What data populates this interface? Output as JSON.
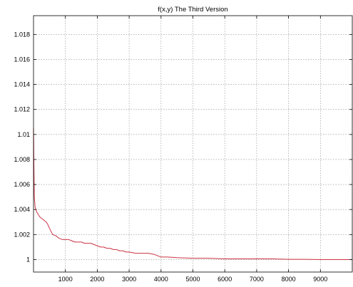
{
  "chart_data": {
    "type": "line",
    "title": "f(x,y) The Third Version",
    "xlabel": "",
    "ylabel": "",
    "xlim": [
      0,
      10000
    ],
    "ylim": [
      0.999,
      1.0195
    ],
    "xticks": [
      1000,
      2000,
      3000,
      4000,
      5000,
      6000,
      7000,
      8000,
      9000
    ],
    "yticks": [
      1,
      1.002,
      1.004,
      1.006,
      1.008,
      1.01,
      1.012,
      1.014,
      1.016,
      1.018
    ],
    "grid": true,
    "series": [
      {
        "color": "#cc3344",
        "x": [
          0,
          10,
          25,
          50,
          100,
          150,
          200,
          250,
          300,
          350,
          400,
          450,
          500,
          560,
          600,
          700,
          800,
          900,
          1000,
          1100,
          1200,
          1300,
          1400,
          1500,
          1600,
          1700,
          1800,
          1900,
          2000,
          2100,
          2200,
          2300,
          2400,
          2500,
          2600,
          2700,
          2800,
          2900,
          3000,
          3200,
          3400,
          3600,
          3800,
          3900,
          4000,
          4200,
          4500,
          5000,
          5500,
          6000,
          6500,
          7000,
          7500,
          8000,
          8500,
          9000,
          9500,
          10000
        ],
        "y": [
          1.0105,
          1.008,
          1.005,
          1.0042,
          1.0038,
          1.0036,
          1.0034,
          1.0033,
          1.0032,
          1.0031,
          1.003,
          1.0028,
          1.0025,
          1.0022,
          1.002,
          1.0019,
          1.0017,
          1.0016,
          1.0016,
          1.0016,
          1.0015,
          1.0014,
          1.0014,
          1.0014,
          1.0013,
          1.0013,
          1.0013,
          1.0012,
          1.0011,
          1.001,
          1.001,
          1.0009,
          1.0009,
          1.0008,
          1.0008,
          1.0007,
          1.0007,
          1.0006,
          1.0006,
          1.0005,
          1.0005,
          1.0005,
          1.0004,
          1.0003,
          1.0002,
          1.0002,
          1.00015,
          1.0001,
          1.0001,
          1.00005,
          1.00005,
          1.00005,
          1.00005,
          1.00002,
          1.00002,
          1.0,
          1.0,
          1.0
        ]
      }
    ]
  }
}
